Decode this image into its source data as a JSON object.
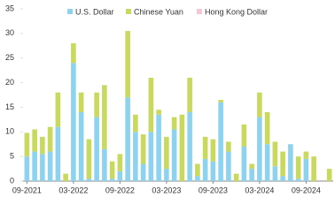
{
  "chart_data": {
    "type": "stacked-bar",
    "categories": [
      "09-2021",
      null,
      null,
      null,
      null,
      null,
      "03-2022",
      null,
      null,
      null,
      null,
      null,
      "09-2022",
      null,
      null,
      null,
      null,
      null,
      "03-2023",
      null,
      null,
      null,
      null,
      null,
      "09-2023",
      null,
      null,
      null,
      null,
      null,
      "03-2024",
      null,
      null,
      null,
      null,
      null,
      "09-2024",
      null,
      null,
      null
    ],
    "series": [
      {
        "name": "U.S. Dollar",
        "color": "#8dd3f0",
        "values": [
          5,
          6,
          5.5,
          6,
          11,
          0,
          24,
          14,
          0.5,
          13,
          6.5,
          0.5,
          2,
          17,
          10,
          3.5,
          10,
          13.5,
          2.5,
          10.5,
          0,
          14,
          1,
          4.5,
          4,
          16,
          6,
          0,
          7,
          2.5,
          13,
          7.5,
          3,
          1,
          7.5,
          0.5,
          4.5,
          0,
          0,
          0
        ]
      },
      {
        "name": "Chinese Yuan",
        "color": "#c8d95e",
        "values": [
          4.8,
          4.5,
          3.5,
          5,
          7,
          1.5,
          4,
          4,
          8,
          5,
          13,
          3.5,
          3.5,
          13.5,
          3.5,
          6,
          11,
          1,
          6.5,
          2.5,
          13.5,
          7,
          2.5,
          4.5,
          4.5,
          0.5,
          2,
          1.5,
          4.5,
          1,
          5,
          6.5,
          5,
          5,
          0,
          4.5,
          1.5,
          5,
          0,
          2.5
        ]
      },
      {
        "name": "Hong Kong Dollar",
        "color": "#f6c6d2",
        "values": [
          0,
          0,
          0,
          0,
          0,
          0,
          0,
          0,
          0,
          0,
          0,
          0,
          0,
          0,
          0,
          0,
          0,
          0,
          0,
          0,
          0,
          0,
          0,
          0,
          0,
          0,
          0,
          0,
          0,
          0,
          0,
          0,
          0,
          0,
          0,
          0,
          0,
          0,
          0,
          0
        ]
      }
    ],
    "ylim": [
      0,
      35
    ],
    "yticks": [
      0,
      5,
      10,
      15,
      20,
      25,
      30,
      35
    ],
    "legend": "top"
  }
}
